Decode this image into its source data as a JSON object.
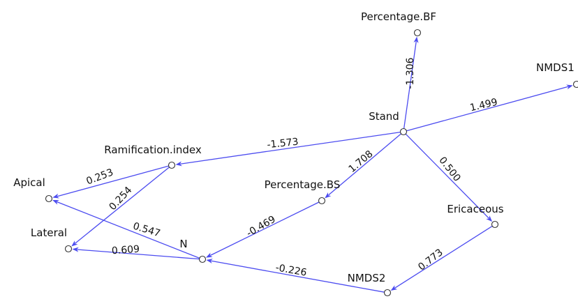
{
  "graph": {
    "nodes": [
      {
        "id": "stand",
        "label": "Stand"
      },
      {
        "id": "percentage_bf",
        "label": "Percentage.BF"
      },
      {
        "id": "nmds1",
        "label": "NMDS1"
      },
      {
        "id": "ramification_index",
        "label": "Ramification.index"
      },
      {
        "id": "apical",
        "label": "Apical"
      },
      {
        "id": "lateral",
        "label": "Lateral"
      },
      {
        "id": "percentage_bs",
        "label": "Percentage.BS"
      },
      {
        "id": "n",
        "label": "N"
      },
      {
        "id": "ericaceous",
        "label": "Ericaceous"
      },
      {
        "id": "nmds2",
        "label": "NMDS2"
      }
    ],
    "edges": [
      {
        "from": "stand",
        "to": "percentage_bf",
        "label": "-1.306"
      },
      {
        "from": "stand",
        "to": "nmds1",
        "label": "1.499"
      },
      {
        "from": "stand",
        "to": "ramification_index",
        "label": "-1.573"
      },
      {
        "from": "stand",
        "to": "percentage_bs",
        "label": "1.708"
      },
      {
        "from": "stand",
        "to": "ericaceous",
        "label": "0.500"
      },
      {
        "from": "ramification_index",
        "to": "apical",
        "label": "0.253"
      },
      {
        "from": "ramification_index",
        "to": "lateral",
        "label": "0.254"
      },
      {
        "from": "n",
        "to": "apical",
        "label": "0.547"
      },
      {
        "from": "n",
        "to": "lateral",
        "label": "0.609"
      },
      {
        "from": "percentage_bs",
        "to": "n",
        "label": "-0.469"
      },
      {
        "from": "nmds2",
        "to": "n",
        "label": "-0.226"
      },
      {
        "from": "ericaceous",
        "to": "nmds2",
        "label": "0.773"
      }
    ],
    "colors": {
      "edge": "#4b4bf0",
      "node_stroke": "#333333",
      "text": "#111111"
    }
  }
}
